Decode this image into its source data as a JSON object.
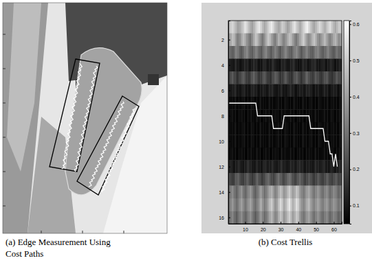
{
  "image_panel": {
    "caption": [
      "(a) Edge Measurement Using",
      "Cost Paths"
    ]
  },
  "chart_data": {
    "type": "heatmap",
    "caption": "(b) Cost Trellis",
    "xlim": [
      0.5,
      64.5
    ],
    "xticks": [
      10,
      20,
      30,
      40,
      50,
      60
    ],
    "ylim": [
      0.5,
      16.5
    ],
    "yticks": [
      2,
      4,
      6,
      8,
      10,
      12,
      14,
      16
    ],
    "colorbar": {
      "range": [
        0.05,
        0.61
      ],
      "ticks": [
        0.1,
        0.2,
        0.3,
        0.4,
        0.5,
        0.6
      ]
    },
    "cells": [
      [
        0.45,
        0.5,
        0.52,
        0.48,
        0.44,
        0.4,
        0.42,
        0.46,
        0.5,
        0.55,
        0.52,
        0.47,
        0.43,
        0.4,
        0.44,
        0.49,
        0.53,
        0.56,
        0.51,
        0.46,
        0.42,
        0.45,
        0.5,
        0.54,
        0.57,
        0.52,
        0.47,
        0.44,
        0.41,
        0.45,
        0.5,
        0.48,
        0.44,
        0.4,
        0.43,
        0.47,
        0.52,
        0.55,
        0.5,
        0.46,
        0.42,
        0.46,
        0.51,
        0.55,
        0.58,
        0.53,
        0.48,
        0.44,
        0.41,
        0.45,
        0.49,
        0.53,
        0.5,
        0.46,
        0.43,
        0.47,
        0.51,
        0.54,
        0.49,
        0.45,
        0.42,
        0.46,
        0.5,
        0.48
      ],
      [
        0.38,
        0.42,
        0.47,
        0.44,
        0.36,
        0.32,
        0.35,
        0.41,
        0.46,
        0.43,
        0.37,
        0.33,
        0.3,
        0.36,
        0.42,
        0.48,
        0.45,
        0.39,
        0.34,
        0.31,
        0.37,
        0.43,
        0.49,
        0.46,
        0.4,
        0.35,
        0.32,
        0.38,
        0.44,
        0.41,
        0.36,
        0.33,
        0.37,
        0.42,
        0.47,
        0.45,
        0.39,
        0.34,
        0.31,
        0.36,
        0.41,
        0.46,
        0.5,
        0.44,
        0.38,
        0.35,
        0.39,
        0.44,
        0.48,
        0.43,
        0.37,
        0.34,
        0.38,
        0.42,
        0.46,
        0.41,
        0.36,
        0.33,
        0.37,
        0.42,
        0.45,
        0.4,
        0.35,
        0.38
      ],
      [
        0.3,
        0.27,
        0.25,
        0.29,
        0.33,
        0.31,
        0.26,
        0.24,
        0.28,
        0.32,
        0.35,
        0.3,
        0.27,
        0.25,
        0.29,
        0.33,
        0.31,
        0.27,
        0.24,
        0.28,
        0.32,
        0.34,
        0.29,
        0.26,
        0.25,
        0.29,
        0.33,
        0.3,
        0.26,
        0.24,
        0.28,
        0.31,
        0.34,
        0.3,
        0.27,
        0.25,
        0.29,
        0.32,
        0.35,
        0.31,
        0.27,
        0.24,
        0.28,
        0.31,
        0.33,
        0.29,
        0.26,
        0.25,
        0.29,
        0.32,
        0.34,
        0.3,
        0.27,
        0.25,
        0.28,
        0.31,
        0.33,
        0.29,
        0.26,
        0.24,
        0.28,
        0.3,
        0.27,
        0.25
      ],
      [
        0.12,
        0.1,
        0.09,
        0.11,
        0.13,
        0.1,
        0.08,
        0.09,
        0.11,
        0.13,
        0.12,
        0.1,
        0.09,
        0.11,
        0.14,
        0.12,
        0.1,
        0.08,
        0.09,
        0.12,
        0.13,
        0.11,
        0.09,
        0.1,
        0.12,
        0.14,
        0.11,
        0.09,
        0.08,
        0.1,
        0.12,
        0.13,
        0.11,
        0.09,
        0.1,
        0.12,
        0.14,
        0.12,
        0.1,
        0.08,
        0.09,
        0.11,
        0.13,
        0.12,
        0.1,
        0.09,
        0.11,
        0.13,
        0.14,
        0.12,
        0.1,
        0.09,
        0.11,
        0.12,
        0.1,
        0.09,
        0.11,
        0.13,
        0.12,
        0.1,
        0.08,
        0.1,
        0.12,
        0.11
      ],
      [
        0.18,
        0.21,
        0.24,
        0.2,
        0.17,
        0.15,
        0.19,
        0.22,
        0.25,
        0.21,
        0.18,
        0.16,
        0.19,
        0.23,
        0.26,
        0.22,
        0.19,
        0.16,
        0.18,
        0.22,
        0.24,
        0.2,
        0.17,
        0.15,
        0.18,
        0.21,
        0.25,
        0.23,
        0.19,
        0.16,
        0.18,
        0.21,
        0.24,
        0.2,
        0.17,
        0.15,
        0.18,
        0.22,
        0.25,
        0.21,
        0.18,
        0.16,
        0.19,
        0.23,
        0.26,
        0.22,
        0.19,
        0.17,
        0.2,
        0.23,
        0.21,
        0.18,
        0.16,
        0.19,
        0.22,
        0.24,
        0.2,
        0.17,
        0.15,
        0.18,
        0.21,
        0.23,
        0.2,
        0.18
      ],
      [
        0.1,
        0.09,
        0.11,
        0.13,
        0.11,
        0.09,
        0.08,
        0.1,
        0.12,
        0.11,
        0.09,
        0.08,
        0.1,
        0.12,
        0.13,
        0.11,
        0.09,
        0.08,
        0.1,
        0.12,
        0.11,
        0.09,
        0.1,
        0.12,
        0.13,
        0.11,
        0.09,
        0.08,
        0.1,
        0.12,
        0.11,
        0.09,
        0.08,
        0.1,
        0.12,
        0.13,
        0.11,
        0.09,
        0.08,
        0.1,
        0.12,
        0.11,
        0.09,
        0.1,
        0.12,
        0.13,
        0.11,
        0.09,
        0.08,
        0.1,
        0.11,
        0.09,
        0.08,
        0.1,
        0.12,
        0.11,
        0.09,
        0.08,
        0.1,
        0.12,
        0.11,
        0.09,
        0.08,
        0.1
      ],
      [
        0.07,
        0.06,
        0.07,
        0.08,
        0.07,
        0.06,
        0.06,
        0.07,
        0.08,
        0.07,
        0.06,
        0.06,
        0.07,
        0.08,
        0.07,
        0.06,
        0.06,
        0.07,
        0.08,
        0.07,
        0.06,
        0.06,
        0.07,
        0.08,
        0.07,
        0.06,
        0.06,
        0.07,
        0.08,
        0.07,
        0.06,
        0.07,
        0.08,
        0.07,
        0.06,
        0.06,
        0.07,
        0.08,
        0.07,
        0.06,
        0.06,
        0.07,
        0.08,
        0.07,
        0.06,
        0.07,
        0.08,
        0.07,
        0.06,
        0.06,
        0.07,
        0.08,
        0.07,
        0.06,
        0.07,
        0.08,
        0.07,
        0.06,
        0.07,
        0.08,
        0.07,
        0.06,
        0.07,
        0.08
      ],
      [
        0.06,
        0.07,
        0.08,
        0.07,
        0.06,
        0.06,
        0.07,
        0.08,
        0.07,
        0.06,
        0.06,
        0.07,
        0.08,
        0.07,
        0.06,
        0.07,
        0.08,
        0.07,
        0.06,
        0.06,
        0.07,
        0.08,
        0.07,
        0.06,
        0.06,
        0.07,
        0.08,
        0.07,
        0.06,
        0.07,
        0.08,
        0.07,
        0.07,
        0.06,
        0.07,
        0.08,
        0.07,
        0.06,
        0.06,
        0.07,
        0.08,
        0.07,
        0.06,
        0.06,
        0.07,
        0.08,
        0.07,
        0.06,
        0.07,
        0.08,
        0.07,
        0.06,
        0.06,
        0.07,
        0.08,
        0.07,
        0.06,
        0.07,
        0.08,
        0.07,
        0.06,
        0.07,
        0.08,
        0.07
      ],
      [
        0.07,
        0.06,
        0.07,
        0.08,
        0.07,
        0.06,
        0.06,
        0.07,
        0.08,
        0.07,
        0.06,
        0.06,
        0.07,
        0.08,
        0.07,
        0.06,
        0.06,
        0.07,
        0.08,
        0.07,
        0.06,
        0.06,
        0.07,
        0.08,
        0.07,
        0.06,
        0.06,
        0.07,
        0.08,
        0.07,
        0.06,
        0.07,
        0.08,
        0.07,
        0.06,
        0.06,
        0.07,
        0.08,
        0.07,
        0.06,
        0.06,
        0.07,
        0.08,
        0.07,
        0.06,
        0.07,
        0.08,
        0.07,
        0.06,
        0.06,
        0.07,
        0.08,
        0.07,
        0.06,
        0.07,
        0.08,
        0.07,
        0.06,
        0.07,
        0.08,
        0.07,
        0.06,
        0.07,
        0.08
      ],
      [
        0.07,
        0.06,
        0.07,
        0.08,
        0.07,
        0.06,
        0.06,
        0.07,
        0.08,
        0.07,
        0.06,
        0.06,
        0.07,
        0.08,
        0.07,
        0.06,
        0.06,
        0.07,
        0.08,
        0.07,
        0.06,
        0.06,
        0.07,
        0.08,
        0.07,
        0.06,
        0.06,
        0.07,
        0.08,
        0.07,
        0.06,
        0.07,
        0.08,
        0.07,
        0.06,
        0.06,
        0.07,
        0.08,
        0.07,
        0.06,
        0.06,
        0.07,
        0.08,
        0.07,
        0.06,
        0.07,
        0.08,
        0.07,
        0.06,
        0.06,
        0.07,
        0.08,
        0.07,
        0.06,
        0.07,
        0.08,
        0.07,
        0.06,
        0.07,
        0.08,
        0.07,
        0.06,
        0.07,
        0.08
      ],
      [
        0.06,
        0.07,
        0.08,
        0.07,
        0.06,
        0.06,
        0.07,
        0.08,
        0.07,
        0.06,
        0.06,
        0.07,
        0.08,
        0.07,
        0.06,
        0.07,
        0.08,
        0.07,
        0.06,
        0.06,
        0.07,
        0.08,
        0.07,
        0.06,
        0.06,
        0.07,
        0.08,
        0.07,
        0.06,
        0.07,
        0.08,
        0.07,
        0.07,
        0.06,
        0.07,
        0.08,
        0.07,
        0.06,
        0.06,
        0.07,
        0.08,
        0.07,
        0.06,
        0.06,
        0.07,
        0.08,
        0.07,
        0.06,
        0.07,
        0.08,
        0.07,
        0.06,
        0.06,
        0.07,
        0.08,
        0.07,
        0.06,
        0.07,
        0.08,
        0.07,
        0.06,
        0.07,
        0.08,
        0.07
      ],
      [
        0.11,
        0.12,
        0.1,
        0.09,
        0.11,
        0.13,
        0.12,
        0.1,
        0.09,
        0.11,
        0.13,
        0.14,
        0.12,
        0.1,
        0.09,
        0.11,
        0.12,
        0.1,
        0.09,
        0.11,
        0.13,
        0.12,
        0.1,
        0.11,
        0.13,
        0.12,
        0.1,
        0.09,
        0.11,
        0.14,
        0.13,
        0.11,
        0.1,
        0.09,
        0.11,
        0.13,
        0.12,
        0.1,
        0.11,
        0.13,
        0.14,
        0.12,
        0.1,
        0.09,
        0.11,
        0.12,
        0.1,
        0.09,
        0.11,
        0.13,
        0.12,
        0.1,
        0.11,
        0.13,
        0.12,
        0.1,
        0.09,
        0.11,
        0.12,
        0.1,
        0.09,
        0.11,
        0.13,
        0.12
      ],
      [
        0.22,
        0.19,
        0.17,
        0.2,
        0.24,
        0.26,
        0.22,
        0.19,
        0.18,
        0.21,
        0.25,
        0.23,
        0.2,
        0.17,
        0.19,
        0.23,
        0.26,
        0.22,
        0.19,
        0.18,
        0.21,
        0.25,
        0.28,
        0.24,
        0.21,
        0.19,
        0.22,
        0.26,
        0.29,
        0.25,
        0.22,
        0.2,
        0.23,
        0.27,
        0.3,
        0.26,
        0.22,
        0.19,
        0.21,
        0.24,
        0.27,
        0.23,
        0.2,
        0.18,
        0.21,
        0.25,
        0.22,
        0.19,
        0.17,
        0.2,
        0.24,
        0.22,
        0.19,
        0.18,
        0.21,
        0.25,
        0.23,
        0.2,
        0.18,
        0.21,
        0.24,
        0.22,
        0.19,
        0.2
      ],
      [
        0.28,
        0.32,
        0.35,
        0.3,
        0.26,
        0.29,
        0.33,
        0.37,
        0.31,
        0.27,
        0.3,
        0.34,
        0.38,
        0.33,
        0.28,
        0.26,
        0.3,
        0.35,
        0.39,
        0.34,
        0.29,
        0.32,
        0.37,
        0.41,
        0.44,
        0.38,
        0.33,
        0.36,
        0.42,
        0.47,
        0.43,
        0.37,
        0.4,
        0.45,
        0.5,
        0.44,
        0.39,
        0.42,
        0.48,
        0.45,
        0.38,
        0.34,
        0.31,
        0.35,
        0.39,
        0.42,
        0.37,
        0.33,
        0.3,
        0.34,
        0.38,
        0.35,
        0.31,
        0.29,
        0.33,
        0.36,
        0.32,
        0.28,
        0.31,
        0.35,
        0.33,
        0.29,
        0.27,
        0.3
      ],
      [
        0.3,
        0.34,
        0.38,
        0.33,
        0.29,
        0.31,
        0.36,
        0.4,
        0.35,
        0.3,
        0.33,
        0.37,
        0.41,
        0.36,
        0.31,
        0.29,
        0.33,
        0.38,
        0.43,
        0.37,
        0.32,
        0.35,
        0.41,
        0.46,
        0.5,
        0.43,
        0.37,
        0.4,
        0.47,
        0.53,
        0.48,
        0.41,
        0.45,
        0.51,
        0.56,
        0.49,
        0.43,
        0.47,
        0.54,
        0.5,
        0.42,
        0.37,
        0.34,
        0.38,
        0.43,
        0.46,
        0.4,
        0.36,
        0.33,
        0.37,
        0.41,
        0.38,
        0.34,
        0.32,
        0.36,
        0.39,
        0.35,
        0.31,
        0.34,
        0.38,
        0.36,
        0.32,
        0.3,
        0.33
      ],
      [
        0.27,
        0.31,
        0.34,
        0.29,
        0.25,
        0.28,
        0.32,
        0.36,
        0.31,
        0.27,
        0.29,
        0.33,
        0.37,
        0.32,
        0.28,
        0.25,
        0.29,
        0.34,
        0.38,
        0.33,
        0.28,
        0.31,
        0.36,
        0.41,
        0.45,
        0.39,
        0.34,
        0.36,
        0.43,
        0.48,
        0.44,
        0.37,
        0.41,
        0.46,
        0.51,
        0.45,
        0.39,
        0.43,
        0.49,
        0.46,
        0.38,
        0.33,
        0.3,
        0.34,
        0.38,
        0.41,
        0.36,
        0.32,
        0.29,
        0.33,
        0.37,
        0.34,
        0.3,
        0.28,
        0.32,
        0.35,
        0.31,
        0.27,
        0.3,
        0.34,
        0.32,
        0.28,
        0.26,
        0.29
      ]
    ],
    "x": [
      1,
      2,
      3,
      4,
      5,
      6,
      7,
      8,
      9,
      10,
      11,
      12,
      13,
      14,
      15,
      16,
      17,
      18,
      19,
      20,
      21,
      22,
      23,
      24,
      25,
      26,
      27,
      28,
      29,
      30,
      31,
      32,
      33,
      34,
      35,
      36,
      37,
      38,
      39,
      40,
      41,
      42,
      43,
      44,
      45,
      46,
      47,
      48,
      49,
      50,
      51,
      52,
      53,
      54,
      55,
      56,
      57,
      58,
      59,
      60,
      61,
      62
    ],
    "series": [
      {
        "color": "#ffffff",
        "values": [
          7,
          7,
          7,
          7,
          7,
          7,
          7,
          7,
          7,
          7,
          7,
          7,
          7,
          7,
          7,
          7,
          8,
          8,
          8,
          8,
          8,
          8,
          8,
          8,
          8,
          9,
          9,
          9,
          9,
          9,
          9,
          8,
          8,
          8,
          8,
          8,
          8,
          8,
          8,
          8,
          8,
          8,
          8,
          8,
          8,
          8,
          9,
          9,
          9,
          9,
          9,
          9,
          9,
          9,
          10,
          10,
          10,
          11,
          11,
          12,
          11,
          12
        ]
      }
    ]
  }
}
